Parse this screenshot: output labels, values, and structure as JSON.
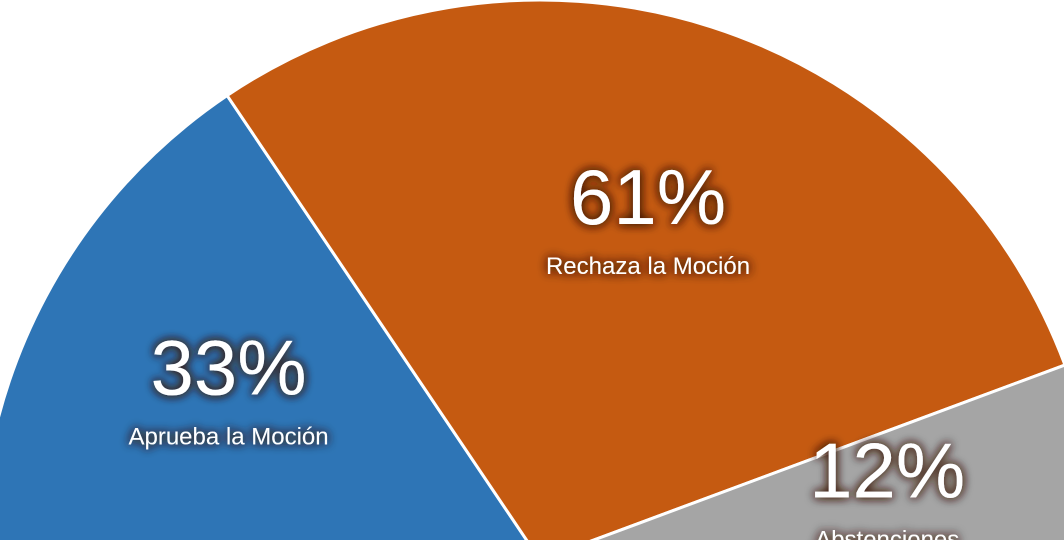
{
  "chart_data": {
    "type": "pie",
    "categories": [
      "Aprueba  la Moción",
      "Rechaza la Moción",
      "Abstenciones"
    ],
    "values": [
      33,
      61,
      12
    ],
    "value_labels": [
      "33%",
      "61%",
      "12%"
    ],
    "colors": [
      "#2e75b6",
      "#c55a11",
      "#a5a5a5"
    ]
  }
}
